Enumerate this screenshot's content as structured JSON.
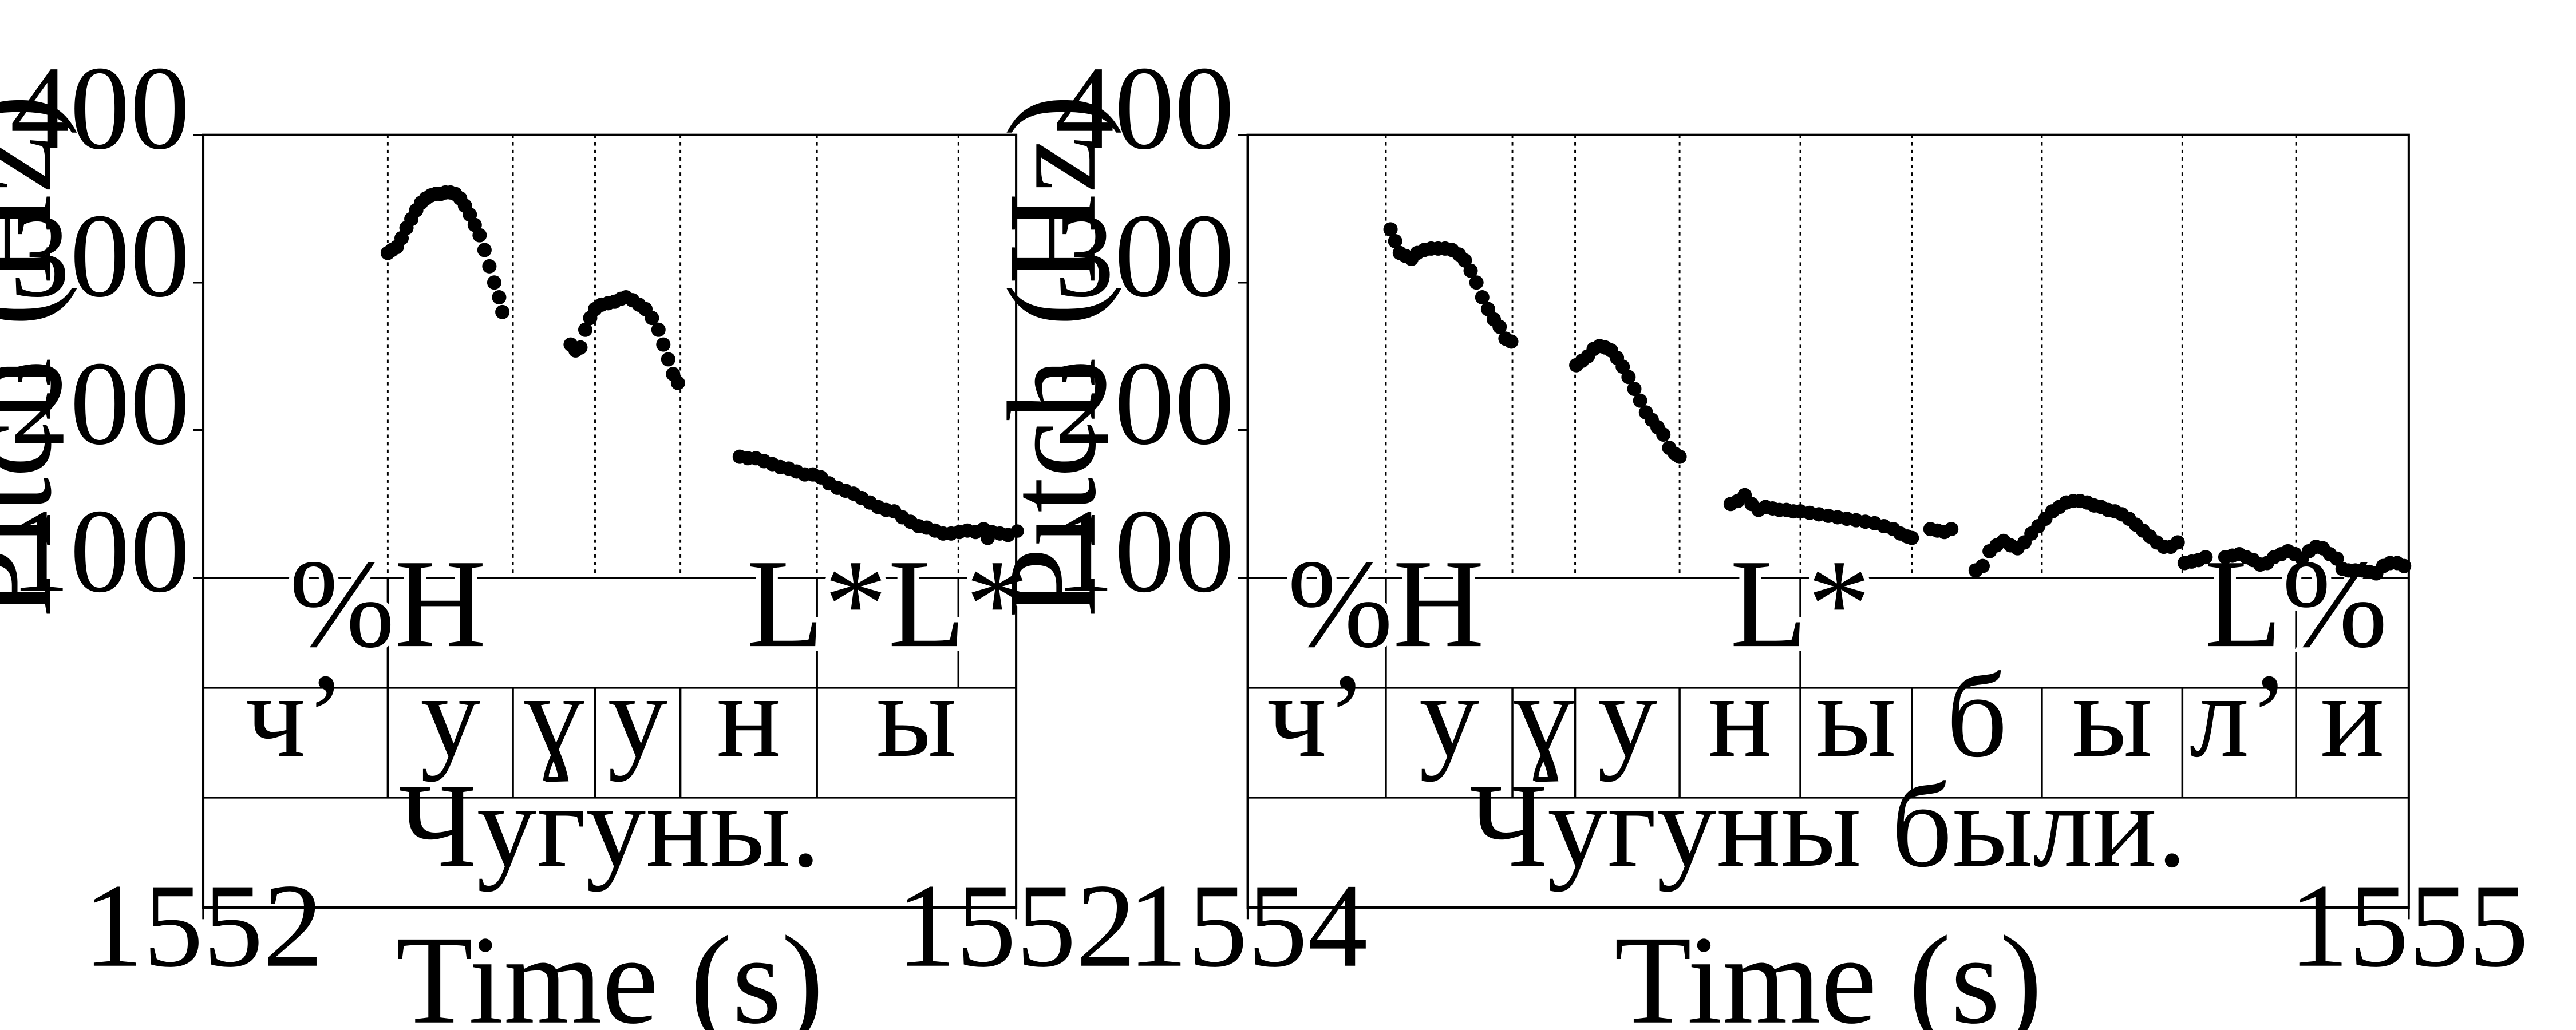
{
  "chart_data": [
    {
      "type": "scatter",
      "xlabel": "Time (s)",
      "ylabel": "Pitch (Hz)",
      "ylim": [
        100,
        400
      ],
      "yticks": [
        "100",
        "200",
        "300",
        "400"
      ],
      "xlim": [
        0,
        1
      ],
      "x_tick_labels": [
        "1552",
        "1552"
      ],
      "tier_lines": [
        0.227,
        0.381,
        0.482,
        0.587,
        0.755,
        0.929
      ],
      "tones": [
        {
          "x": 0.227,
          "label": "%H"
        },
        {
          "x": 0.755,
          "label": "L*"
        },
        {
          "x": 0.929,
          "label": "L*"
        }
      ],
      "segments": [
        {
          "start": 0.0,
          "end": 0.227,
          "label": "ч’"
        },
        {
          "start": 0.227,
          "end": 0.381,
          "label": "у"
        },
        {
          "start": 0.381,
          "end": 0.482,
          "label": "ɣ"
        },
        {
          "start": 0.482,
          "end": 0.587,
          "label": "у"
        },
        {
          "start": 0.587,
          "end": 0.755,
          "label": "н"
        },
        {
          "start": 0.755,
          "end": 1.0,
          "label": "ы"
        }
      ],
      "sentence": "Чугуны.",
      "series": [
        {
          "points": [
            [
              0.227,
              320
            ],
            [
              0.232,
              322
            ],
            [
              0.238,
              324
            ],
            [
              0.244,
              330
            ],
            [
              0.25,
              337
            ],
            [
              0.256,
              343
            ],
            [
              0.262,
              349
            ],
            [
              0.268,
              354
            ],
            [
              0.274,
              357
            ],
            [
              0.28,
              359
            ],
            [
              0.286,
              360
            ],
            [
              0.292,
              360
            ],
            [
              0.298,
              361
            ],
            [
              0.304,
              361
            ],
            [
              0.31,
              360
            ],
            [
              0.316,
              357
            ],
            [
              0.322,
              352
            ],
            [
              0.328,
              346
            ],
            [
              0.334,
              339
            ],
            [
              0.34,
              332
            ],
            [
              0.346,
              322
            ],
            [
              0.352,
              311
            ],
            [
              0.358,
              300
            ],
            [
              0.364,
              290
            ],
            [
              0.368,
              280
            ]
          ]
        },
        {
          "points": [
            [
              0.452,
              258
            ],
            [
              0.458,
              254
            ],
            [
              0.464,
              256
            ],
            [
              0.47,
              268
            ],
            [
              0.476,
              276
            ],
            [
              0.482,
              282
            ],
            [
              0.49,
              285
            ],
            [
              0.498,
              286
            ],
            [
              0.506,
              287
            ],
            [
              0.514,
              289
            ],
            [
              0.52,
              290
            ],
            [
              0.528,
              288
            ],
            [
              0.536,
              285
            ],
            [
              0.544,
              282
            ],
            [
              0.552,
              276
            ],
            [
              0.56,
              268
            ],
            [
              0.566,
              258
            ],
            [
              0.572,
              248
            ],
            [
              0.578,
              238
            ],
            [
              0.584,
              232
            ]
          ]
        },
        {
          "points": [
            [
              0.66,
              182
            ],
            [
              0.67,
              181
            ],
            [
              0.68,
              181
            ],
            [
              0.69,
              179
            ],
            [
              0.7,
              177
            ],
            [
              0.71,
              175
            ],
            [
              0.72,
              174
            ],
            [
              0.73,
              172
            ],
            [
              0.74,
              170
            ],
            [
              0.75,
              170
            ],
            [
              0.76,
              168
            ],
            [
              0.77,
              164
            ],
            [
              0.78,
              161
            ],
            [
              0.79,
              159
            ],
            [
              0.8,
              157
            ],
            [
              0.81,
              154
            ],
            [
              0.82,
              151
            ],
            [
              0.83,
              148
            ],
            [
              0.84,
              146
            ],
            [
              0.85,
              145
            ],
            [
              0.86,
              141
            ],
            [
              0.87,
              138
            ],
            [
              0.88,
              135
            ],
            [
              0.89,
              134
            ],
            [
              0.9,
              132
            ],
            [
              0.91,
              130
            ],
            [
              0.92,
              130
            ],
            [
              0.93,
              131
            ],
            [
              0.94,
              132
            ],
            [
              0.95,
              131
            ],
            [
              0.96,
              133
            ],
            [
              0.965,
              127
            ],
            [
              0.97,
              131
            ],
            [
              0.98,
              130
            ],
            [
              0.99,
              129
            ]
          ]
        }
      ]
    },
    {
      "type": "scatter",
      "xlabel": "Time (s)",
      "ylabel": "Pitch (Hz)",
      "ylim": [
        100,
        400
      ],
      "yticks": [
        "100",
        "200",
        "300",
        "400"
      ],
      "xlim": [
        0,
        1
      ],
      "x_tick_labels": [
        "1554",
        "1555"
      ],
      "tier_lines": [
        0.119,
        0.228,
        0.282,
        0.372,
        0.476,
        0.572,
        0.684,
        0.805,
        0.903
      ],
      "tones": [
        {
          "x": 0.119,
          "label": "%H"
        },
        {
          "x": 0.476,
          "label": "L*"
        },
        {
          "x": 0.903,
          "label": "L%"
        }
      ],
      "segments": [
        {
          "start": 0.0,
          "end": 0.119,
          "label": "ч’"
        },
        {
          "start": 0.119,
          "end": 0.228,
          "label": "у"
        },
        {
          "start": 0.228,
          "end": 0.282,
          "label": "ɣ"
        },
        {
          "start": 0.282,
          "end": 0.372,
          "label": "у"
        },
        {
          "start": 0.372,
          "end": 0.476,
          "label": "н"
        },
        {
          "start": 0.476,
          "end": 0.572,
          "label": "ы"
        },
        {
          "start": 0.572,
          "end": 0.684,
          "label": "б"
        },
        {
          "start": 0.684,
          "end": 0.805,
          "label": "ы"
        },
        {
          "start": 0.805,
          "end": 0.903,
          "label": "л’"
        },
        {
          "start": 0.903,
          "end": 1.0,
          "label": "и"
        }
      ],
      "sentence": "Чугуны были.",
      "series": [
        {
          "points": [
            [
              0.123,
              336
            ],
            [
              0.127,
              328
            ],
            [
              0.131,
              320
            ],
            [
              0.136,
              318
            ],
            [
              0.141,
              316
            ],
            [
              0.146,
              320
            ],
            [
              0.152,
              322
            ],
            [
              0.158,
              323
            ],
            [
              0.164,
              323
            ],
            [
              0.17,
              323
            ],
            [
              0.176,
              322
            ],
            [
              0.182,
              319
            ],
            [
              0.187,
              315
            ],
            [
              0.192,
              308
            ],
            [
              0.197,
              300
            ],
            [
              0.202,
              290
            ],
            [
              0.207,
              282
            ],
            [
              0.212,
              275
            ],
            [
              0.217,
              270
            ],
            [
              0.222,
              262
            ],
            [
              0.227,
              260
            ]
          ]
        },
        {
          "points": [
            [
              0.283,
              244
            ],
            [
              0.288,
              247
            ],
            [
              0.293,
              250
            ],
            [
              0.298,
              255
            ],
            [
              0.303,
              257
            ],
            [
              0.308,
              256
            ],
            [
              0.313,
              254
            ],
            [
              0.318,
              249
            ],
            [
              0.323,
              243
            ],
            [
              0.328,
              236
            ],
            [
              0.333,
              228
            ],
            [
              0.338,
              220
            ],
            [
              0.343,
              212
            ],
            [
              0.348,
              207
            ],
            [
              0.353,
              202
            ],
            [
              0.358,
              197
            ],
            [
              0.363,
              188
            ],
            [
              0.368,
              184
            ],
            [
              0.372,
              182
            ]
          ]
        },
        {
          "points": [
            [
              0.416,
              150
            ],
            [
              0.422,
              152
            ],
            [
              0.428,
              156
            ],
            [
              0.434,
              150
            ],
            [
              0.44,
              146
            ],
            [
              0.446,
              148
            ],
            [
              0.452,
              147
            ],
            [
              0.458,
              146
            ],
            [
              0.464,
              146
            ],
            [
              0.47,
              145
            ],
            [
              0.476,
              145
            ],
            [
              0.484,
              144
            ],
            [
              0.492,
              143
            ],
            [
              0.5,
              142
            ],
            [
              0.508,
              141
            ],
            [
              0.516,
              140
            ],
            [
              0.524,
              139
            ],
            [
              0.532,
              138
            ],
            [
              0.54,
              137
            ],
            [
              0.548,
              135
            ],
            [
              0.556,
              133
            ],
            [
              0.562,
              130
            ],
            [
              0.568,
              128
            ],
            [
              0.572,
              127
            ]
          ]
        },
        {
          "points": [
            [
              0.588,
              133
            ],
            [
              0.594,
              132
            ],
            [
              0.6,
              131
            ],
            [
              0.606,
              133
            ]
          ]
        },
        {
          "points": [
            [
              0.627,
              105
            ],
            [
              0.633,
              108
            ],
            [
              0.639,
              118
            ],
            [
              0.645,
              122
            ],
            [
              0.651,
              125
            ],
            [
              0.657,
              122
            ],
            [
              0.663,
              120
            ],
            [
              0.669,
              124
            ],
            [
              0.675,
              130
            ],
            [
              0.681,
              135
            ],
            [
              0.687,
              140
            ],
            [
              0.693,
              145
            ],
            [
              0.699,
              148
            ],
            [
              0.705,
              151
            ],
            [
              0.711,
              152
            ],
            [
              0.717,
              152
            ],
            [
              0.723,
              151
            ],
            [
              0.729,
              149
            ],
            [
              0.735,
              148
            ],
            [
              0.741,
              146
            ],
            [
              0.747,
              145
            ],
            [
              0.753,
              143
            ],
            [
              0.759,
              140
            ],
            [
              0.765,
              136
            ],
            [
              0.771,
              132
            ],
            [
              0.777,
              128
            ],
            [
              0.783,
              124
            ],
            [
              0.789,
              121
            ],
            [
              0.795,
              121
            ],
            [
              0.801,
              124
            ]
          ]
        },
        {
          "points": [
            [
              0.807,
              110
            ],
            [
              0.813,
              111
            ],
            [
              0.819,
              112
            ],
            [
              0.825,
              114
            ]
          ]
        },
        {
          "points": [
            [
              0.842,
              114
            ],
            [
              0.848,
              115
            ],
            [
              0.854,
              116
            ],
            [
              0.86,
              114
            ],
            [
              0.866,
              112
            ],
            [
              0.872,
              109
            ],
            [
              0.878,
              110
            ],
            [
              0.884,
              114
            ],
            [
              0.89,
              116
            ],
            [
              0.896,
              118
            ],
            [
              0.902,
              116
            ],
            [
              0.908,
              113
            ],
            [
              0.914,
              118
            ],
            [
              0.92,
              121
            ],
            [
              0.926,
              120
            ],
            [
              0.932,
              116
            ],
            [
              0.938,
              113
            ],
            [
              0.943,
              106
            ],
            [
              0.948,
              105
            ],
            [
              0.954,
              105
            ],
            [
              0.96,
              105
            ],
            [
              0.966,
              104
            ],
            [
              0.972,
              103
            ],
            [
              0.978,
              108
            ],
            [
              0.984,
              110
            ],
            [
              0.99,
              110
            ],
            [
              0.996,
              108
            ]
          ]
        }
      ]
    }
  ]
}
